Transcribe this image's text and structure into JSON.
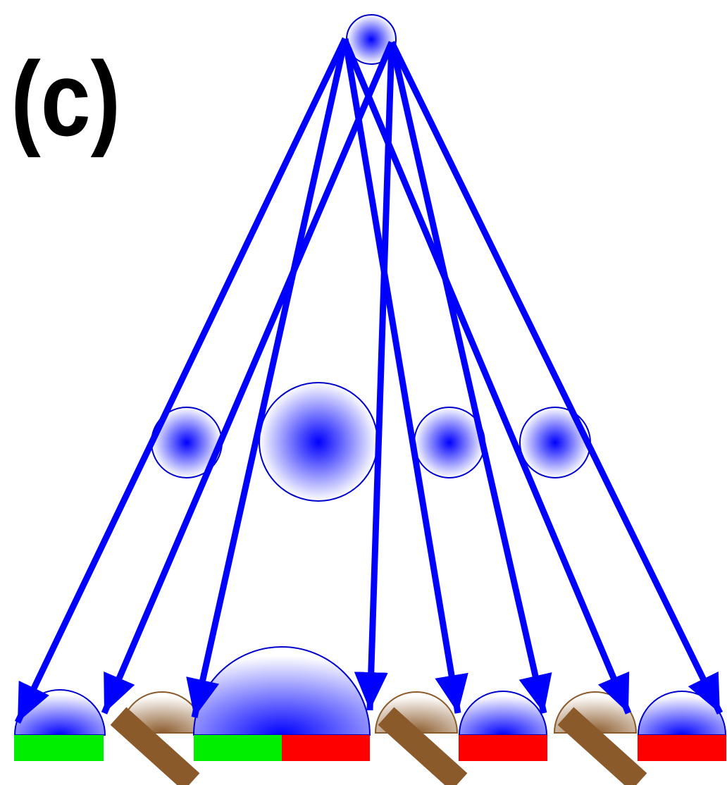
{
  "label": "(c)"
}
